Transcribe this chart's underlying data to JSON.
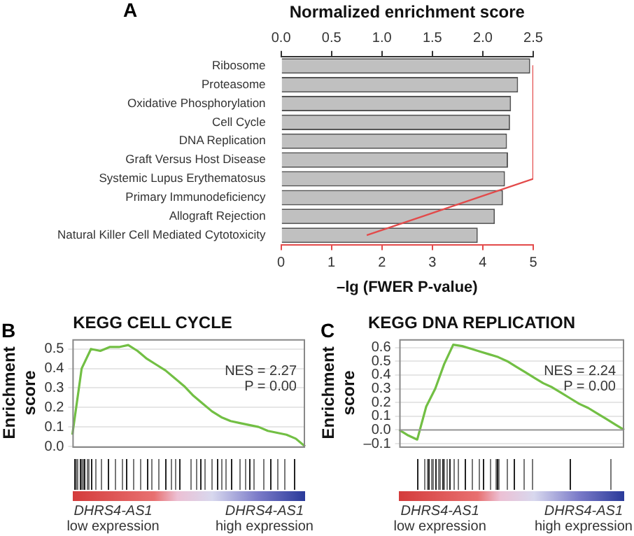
{
  "chart_data": [
    {
      "type": "bar",
      "orientation": "horizontal",
      "annotations": [
        "A"
      ],
      "xlabel": "Normalized enrichment score",
      "x2label": "–lg (FWER P-value)",
      "categories": [
        "Ribosome",
        "Proteasome",
        "Oxidative Phosphorylation",
        "Cell Cycle",
        "DNA Replication",
        "Graft Versus Host Disease",
        "Systemic Lupus Erythematosus",
        "Primary Immunodeficiency",
        "Allograft Rejection",
        "Natural Killer Cell Mediated Cytotoxicity"
      ],
      "series": [
        {
          "type": "bar",
          "color": "#c0c0c0",
          "values": [
            2.47,
            2.35,
            2.28,
            2.27,
            2.24,
            2.25,
            2.22,
            2.2,
            2.12,
            1.95
          ]
        },
        {
          "type": "line",
          "axis": "x2",
          "color": "#e34a4a",
          "values": [
            5,
            5,
            5,
            5,
            5,
            5,
            5,
            3.9,
            2.8,
            1.7
          ]
        }
      ],
      "xlim": [
        0,
        2.5
      ],
      "xticks": [
        {
          "value": 0,
          "label": "0.0"
        },
        {
          "value": 0.5,
          "label": "0.5"
        },
        {
          "value": 1,
          "label": "1.0"
        },
        {
          "value": 1.5,
          "label": "1.5"
        },
        {
          "value": 2,
          "label": "2.0"
        },
        {
          "value": 2.5,
          "label": "2.5"
        }
      ],
      "x2lim": [
        0,
        5
      ],
      "x2ticks": [
        0,
        1,
        2,
        3,
        4,
        5
      ],
      "legend": false,
      "grid": false,
      "marker": "none"
    },
    {
      "type": "line",
      "title": "KEGG CELL CYCLE",
      "ylabel": "Enrichment score",
      "annotations": [
        "B",
        "NES = 2.27\nP = 0.00",
        "DHRS4-AS1\nlow expression",
        "DHRS4-AS1\nhigh expression"
      ],
      "categories": [
        null,
        null,
        null,
        null,
        null,
        null,
        null,
        null,
        null,
        null,
        null,
        null,
        null,
        null,
        null,
        null,
        null,
        null,
        null,
        null,
        null,
        null,
        null,
        null,
        null,
        null
      ],
      "series": [
        {
          "color": "#72bf44",
          "values": [
            0.06,
            0.4,
            0.5,
            0.49,
            0.51,
            0.51,
            0.52,
            0.49,
            0.45,
            0.42,
            0.39,
            0.35,
            0.31,
            0.26,
            0.22,
            0.18,
            0.15,
            0.13,
            0.12,
            0.11,
            0.1,
            0.08,
            0.07,
            0.06,
            0.04,
            0.0
          ]
        }
      ],
      "ylim": [
        0,
        0.55
      ],
      "yticks": [
        {
          "value": 0,
          "label": "0.0"
        },
        {
          "value": 0.1,
          "label": "0.1"
        },
        {
          "value": 0.2,
          "label": "0.2"
        },
        {
          "value": 0.3,
          "label": "0.3"
        },
        {
          "value": 0.4,
          "label": "0.4"
        },
        {
          "value": 0.5,
          "label": "0.5"
        }
      ],
      "tick_labels": "y",
      "grid": "y",
      "legend": false,
      "marker": "none"
    },
    {
      "type": "line",
      "title": "KEGG DNA REPLICATION",
      "ylabel": "Enrichment score",
      "annotations": [
        "C",
        "NES = 2.24\nP = 0.00",
        "DHRS4-AS1\nlow expression",
        "DHRS4-AS1\nhigh expression"
      ],
      "categories": [
        null,
        null,
        null,
        null,
        null,
        null,
        null,
        null,
        null,
        null,
        null,
        null,
        null,
        null,
        null,
        null,
        null,
        null,
        null,
        null,
        null,
        null,
        null,
        null,
        null,
        null
      ],
      "series": [
        {
          "color": "#72bf44",
          "values": [
            0.0,
            -0.04,
            -0.07,
            0.17,
            0.3,
            0.48,
            0.62,
            0.61,
            0.59,
            0.57,
            0.55,
            0.53,
            0.5,
            0.46,
            0.42,
            0.38,
            0.34,
            0.31,
            0.27,
            0.23,
            0.19,
            0.16,
            0.12,
            0.08,
            0.04,
            0.0
          ]
        }
      ],
      "ylim": [
        -0.12,
        0.66
      ],
      "yticks": [
        {
          "value": -0.1,
          "label": "–0.1"
        },
        {
          "value": 0,
          "label": "0.0"
        },
        {
          "value": 0.1,
          "label": "0.1"
        },
        {
          "value": 0.2,
          "label": "0.2"
        },
        {
          "value": 0.3,
          "label": "0.3"
        },
        {
          "value": 0.4,
          "label": "0.4"
        },
        {
          "value": 0.5,
          "label": "0.5"
        },
        {
          "value": 0.6,
          "label": "0.6"
        }
      ],
      "ref_lines": [
        {
          "axis": "y",
          "value": 0,
          "color": "#999999"
        }
      ],
      "tick_labels": "y",
      "grid": "y",
      "legend": false,
      "marker": "none"
    }
  ]
}
